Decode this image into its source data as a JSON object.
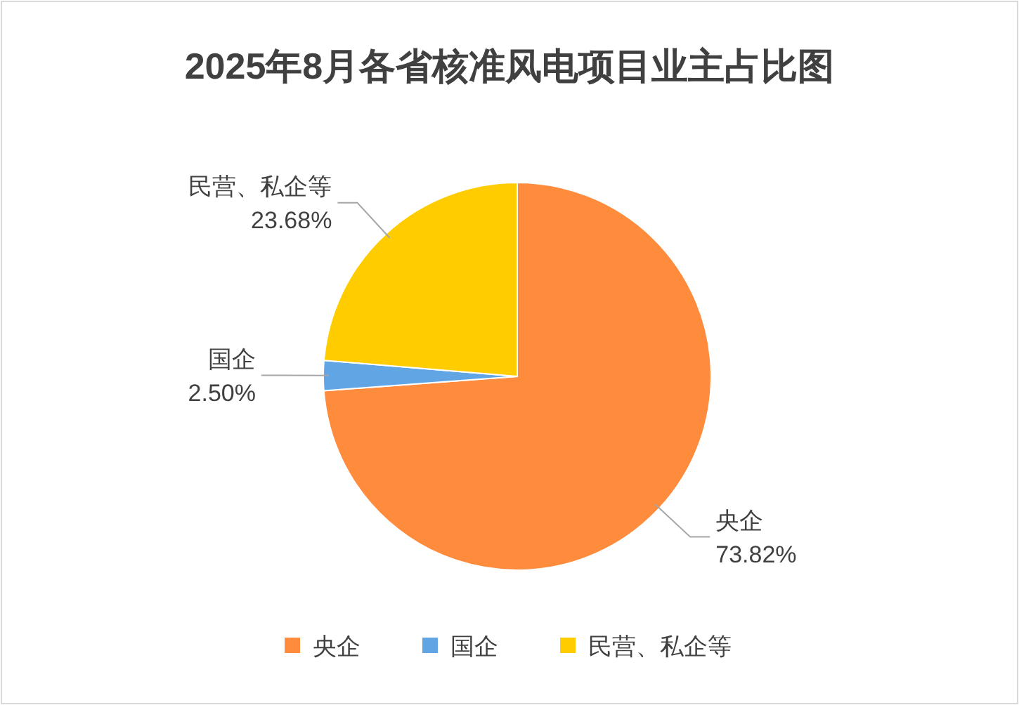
{
  "chart_data": {
    "type": "pie",
    "title": "2025年8月各省核准风电项目业主占比图",
    "categories": [
      "央企",
      "国企",
      "民营、私企等"
    ],
    "values": [
      73.82,
      2.5,
      23.68
    ],
    "colors": [
      "#ff8b3d",
      "#62a5e4",
      "#ffcc00"
    ],
    "value_labels": [
      "73.82%",
      "2.50%",
      "23.68%"
    ],
    "legend": "bottom"
  }
}
